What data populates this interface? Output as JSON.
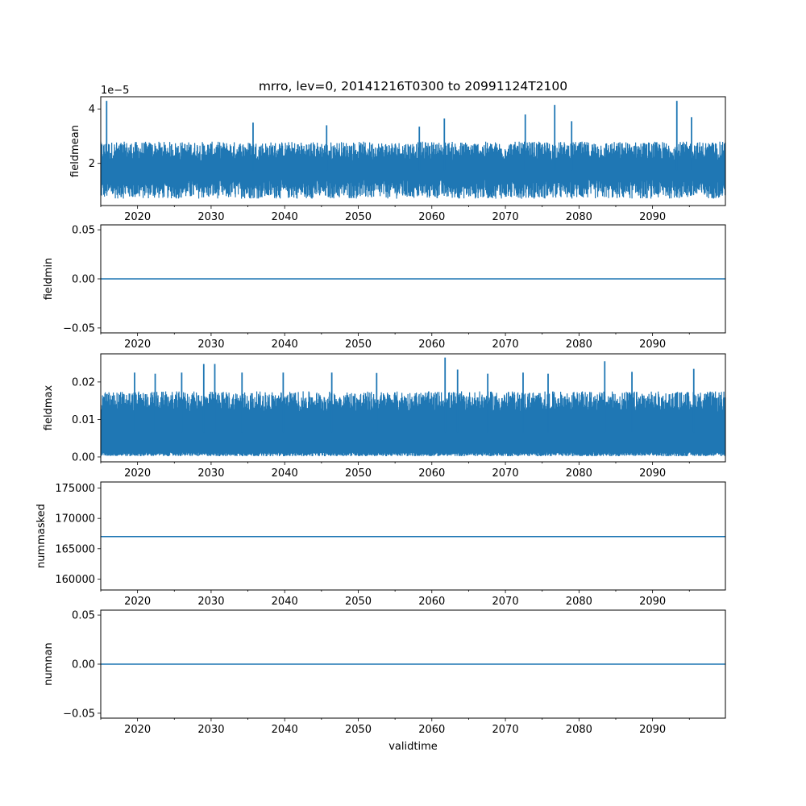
{
  "chart_data": [
    {
      "type": "line",
      "title": "mrro, lev=0, 20141216T0300 to 20991124T2100",
      "ylabel": "fieldmean",
      "xlabel": "",
      "offset_label": "1e−5",
      "color": "#1f77b4",
      "xlim": [
        2015.0,
        2099.9
      ],
      "ylim": [
        0.45,
        4.45
      ],
      "xticks": [
        2020,
        2030,
        2040,
        2050,
        2060,
        2070,
        2080,
        2090
      ],
      "yticks": [
        {
          "value": 2,
          "label": "2"
        },
        {
          "value": 4,
          "label": "4"
        }
      ],
      "series": [
        {
          "style": "noisy-band",
          "x_range": [
            2014.96,
            2099.89
          ],
          "low_range": [
            0.7,
            1.4
          ],
          "high_range": [
            2.1,
            2.8
          ],
          "spikes": [
            {
              "x": 2015.8,
              "y": 4.3
            },
            {
              "x": 2035.7,
              "y": 3.5
            },
            {
              "x": 2045.7,
              "y": 3.4
            },
            {
              "x": 2058.3,
              "y": 3.35
            },
            {
              "x": 2061.7,
              "y": 3.65
            },
            {
              "x": 2072.7,
              "y": 3.8
            },
            {
              "x": 2076.7,
              "y": 4.15
            },
            {
              "x": 2079.0,
              "y": 3.55
            },
            {
              "x": 2093.3,
              "y": 4.3
            },
            {
              "x": 2095.3,
              "y": 3.7
            }
          ]
        }
      ]
    },
    {
      "type": "line",
      "title": "",
      "ylabel": "fieldmin",
      "xlabel": "",
      "color": "#1f77b4",
      "xlim": [
        2015.0,
        2099.9
      ],
      "ylim": [
        -0.055,
        0.055
      ],
      "xticks": [
        2020,
        2030,
        2040,
        2050,
        2060,
        2070,
        2080,
        2090
      ],
      "yticks": [
        {
          "value": -0.05,
          "label": "−0.05"
        },
        {
          "value": 0,
          "label": "0.00"
        },
        {
          "value": 0.05,
          "label": "0.05"
        }
      ],
      "series": [
        {
          "style": "constant",
          "x_range": [
            2014.96,
            2099.89
          ],
          "value": 0
        }
      ]
    },
    {
      "type": "line",
      "title": "",
      "ylabel": "fieldmax",
      "xlabel": "",
      "color": "#1f77b4",
      "xlim": [
        2015.0,
        2099.9
      ],
      "ylim": [
        -0.0013,
        0.0275
      ],
      "xticks": [
        2020,
        2030,
        2040,
        2050,
        2060,
        2070,
        2080,
        2090
      ],
      "yticks": [
        {
          "value": 0,
          "label": "0.00"
        },
        {
          "value": 0.01,
          "label": "0.01"
        },
        {
          "value": 0.02,
          "label": "0.02"
        }
      ],
      "series": [
        {
          "style": "noisy-band",
          "x_range": [
            2014.96,
            2099.89
          ],
          "low_range": [
            0.0002,
            0.0012
          ],
          "high_range": [
            0.012,
            0.0175
          ],
          "spikes": [
            {
              "x": 2019.6,
              "y": 0.0225
            },
            {
              "x": 2022.4,
              "y": 0.0222
            },
            {
              "x": 2026.0,
              "y": 0.0225
            },
            {
              "x": 2029.0,
              "y": 0.0248
            },
            {
              "x": 2030.5,
              "y": 0.0248
            },
            {
              "x": 2034.2,
              "y": 0.0225
            },
            {
              "x": 2039.8,
              "y": 0.0225
            },
            {
              "x": 2046.4,
              "y": 0.0225
            },
            {
              "x": 2052.5,
              "y": 0.0224
            },
            {
              "x": 2061.8,
              "y": 0.0265
            },
            {
              "x": 2063.5,
              "y": 0.0233
            },
            {
              "x": 2067.6,
              "y": 0.0222
            },
            {
              "x": 2072.4,
              "y": 0.0225
            },
            {
              "x": 2075.8,
              "y": 0.0222
            },
            {
              "x": 2083.5,
              "y": 0.0255
            },
            {
              "x": 2087.2,
              "y": 0.0227
            },
            {
              "x": 2095.6,
              "y": 0.0235
            }
          ]
        }
      ]
    },
    {
      "type": "line",
      "title": "",
      "ylabel": "nummasked",
      "xlabel": "",
      "color": "#1f77b4",
      "xlim": [
        2015.0,
        2099.9
      ],
      "ylim": [
        158200,
        176000
      ],
      "xticks": [
        2020,
        2030,
        2040,
        2050,
        2060,
        2070,
        2080,
        2090
      ],
      "yticks": [
        {
          "value": 160000,
          "label": "160000"
        },
        {
          "value": 165000,
          "label": "165000"
        },
        {
          "value": 170000,
          "label": "170000"
        },
        {
          "value": 175000,
          "label": "175000"
        }
      ],
      "series": [
        {
          "style": "constant",
          "x_range": [
            2014.96,
            2099.89
          ],
          "value": 167000
        }
      ]
    },
    {
      "type": "line",
      "title": "",
      "ylabel": "numnan",
      "xlabel": "validtime",
      "color": "#1f77b4",
      "xlim": [
        2015.0,
        2099.9
      ],
      "ylim": [
        -0.055,
        0.055
      ],
      "xticks": [
        2020,
        2030,
        2040,
        2050,
        2060,
        2070,
        2080,
        2090
      ],
      "yticks": [
        {
          "value": -0.05,
          "label": "−0.05"
        },
        {
          "value": 0,
          "label": "0.00"
        },
        {
          "value": 0.05,
          "label": "0.05"
        }
      ],
      "series": [
        {
          "style": "constant",
          "x_range": [
            2014.96,
            2099.89
          ],
          "value": 0
        }
      ]
    }
  ]
}
